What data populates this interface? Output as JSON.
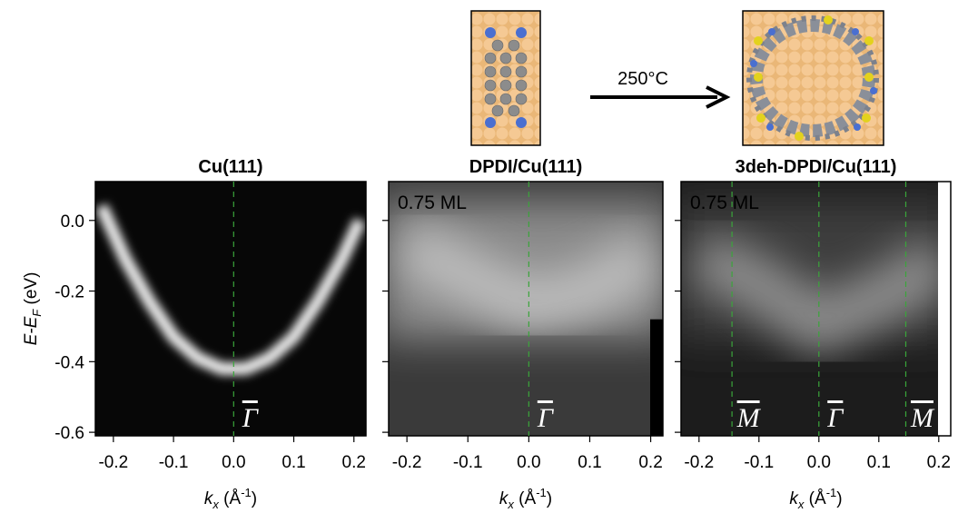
{
  "schematic": {
    "arrow_label": "250°C"
  },
  "chart_data": [
    {
      "type": "image",
      "title": "Cu(111)",
      "xlim": [
        -0.23,
        0.22
      ],
      "xticks": [
        -0.2,
        -0.1,
        {
          "value": 0,
          "label": "0.0"
        },
        0.1,
        0.2
      ],
      "ylim": [
        -0.61,
        0.11
      ],
      "yticks": [
        {
          "value": 0,
          "label": "0.0"
        },
        -0.2,
        -0.4,
        -0.6
      ],
      "xlabel": {
        "k": "k",
        "sub": "x",
        "unit": " (Å",
        "sup": "-1",
        "end": ")"
      },
      "ylabel": {
        "e": "E-E",
        "sub": "F",
        "unit": " (eV)"
      },
      "lines": [
        {
          "x": 0,
          "label": "Γ"
        }
      ],
      "band": {
        "x": [
          -0.22,
          -0.18,
          -0.14,
          -0.1,
          -0.06,
          -0.02,
          0.02,
          0.06,
          0.1,
          0.14,
          0.18,
          0.21
        ],
        "values": [
          0.04,
          -0.11,
          -0.23,
          -0.33,
          -0.39,
          -0.42,
          -0.42,
          -0.39,
          -0.33,
          -0.23,
          -0.11,
          0.0
        ]
      }
    },
    {
      "type": "image",
      "title": "DPDI/Cu(111)",
      "annotation": "0.75 ML",
      "xlim": [
        -0.23,
        0.22
      ],
      "xticks": [
        -0.2,
        -0.1,
        {
          "value": 0,
          "label": "0.0"
        },
        0.1,
        0.2
      ],
      "ylim": [
        -0.61,
        0.11
      ],
      "xlabel": {
        "k": "k",
        "sub": "x",
        "unit": " (Å",
        "sup": "-1",
        "end": ")"
      },
      "lines": [
        {
          "x": 0,
          "label": "Γ"
        }
      ],
      "band": {
        "x": [
          -0.2,
          -0.1,
          0,
          0.1,
          0.2
        ],
        "values": [
          -0.07,
          -0.16,
          -0.24,
          -0.2,
          -0.1
        ]
      }
    },
    {
      "type": "image",
      "title": "3deh-DPDI/Cu(111)",
      "annotation": "0.75 ML",
      "xlim": [
        -0.23,
        0.22
      ],
      "xticks": [
        -0.2,
        -0.1,
        {
          "value": 0,
          "label": "0.0"
        },
        0.1,
        0.2
      ],
      "ylim": [
        -0.61,
        0.11
      ],
      "xlabel": {
        "k": "k",
        "sub": "x",
        "unit": " (Å",
        "sup": "-1",
        "end": ")"
      },
      "lines": [
        {
          "x": -0.145,
          "label": "M"
        },
        {
          "x": 0,
          "label": "Γ"
        },
        {
          "x": 0.145,
          "label": "M"
        }
      ],
      "band": {
        "x": [
          -0.2,
          -0.1,
          0,
          0.1,
          0.15,
          0.2
        ],
        "values": [
          -0.1,
          -0.18,
          -0.3,
          -0.22,
          -0.18,
          -0.1
        ]
      }
    }
  ]
}
